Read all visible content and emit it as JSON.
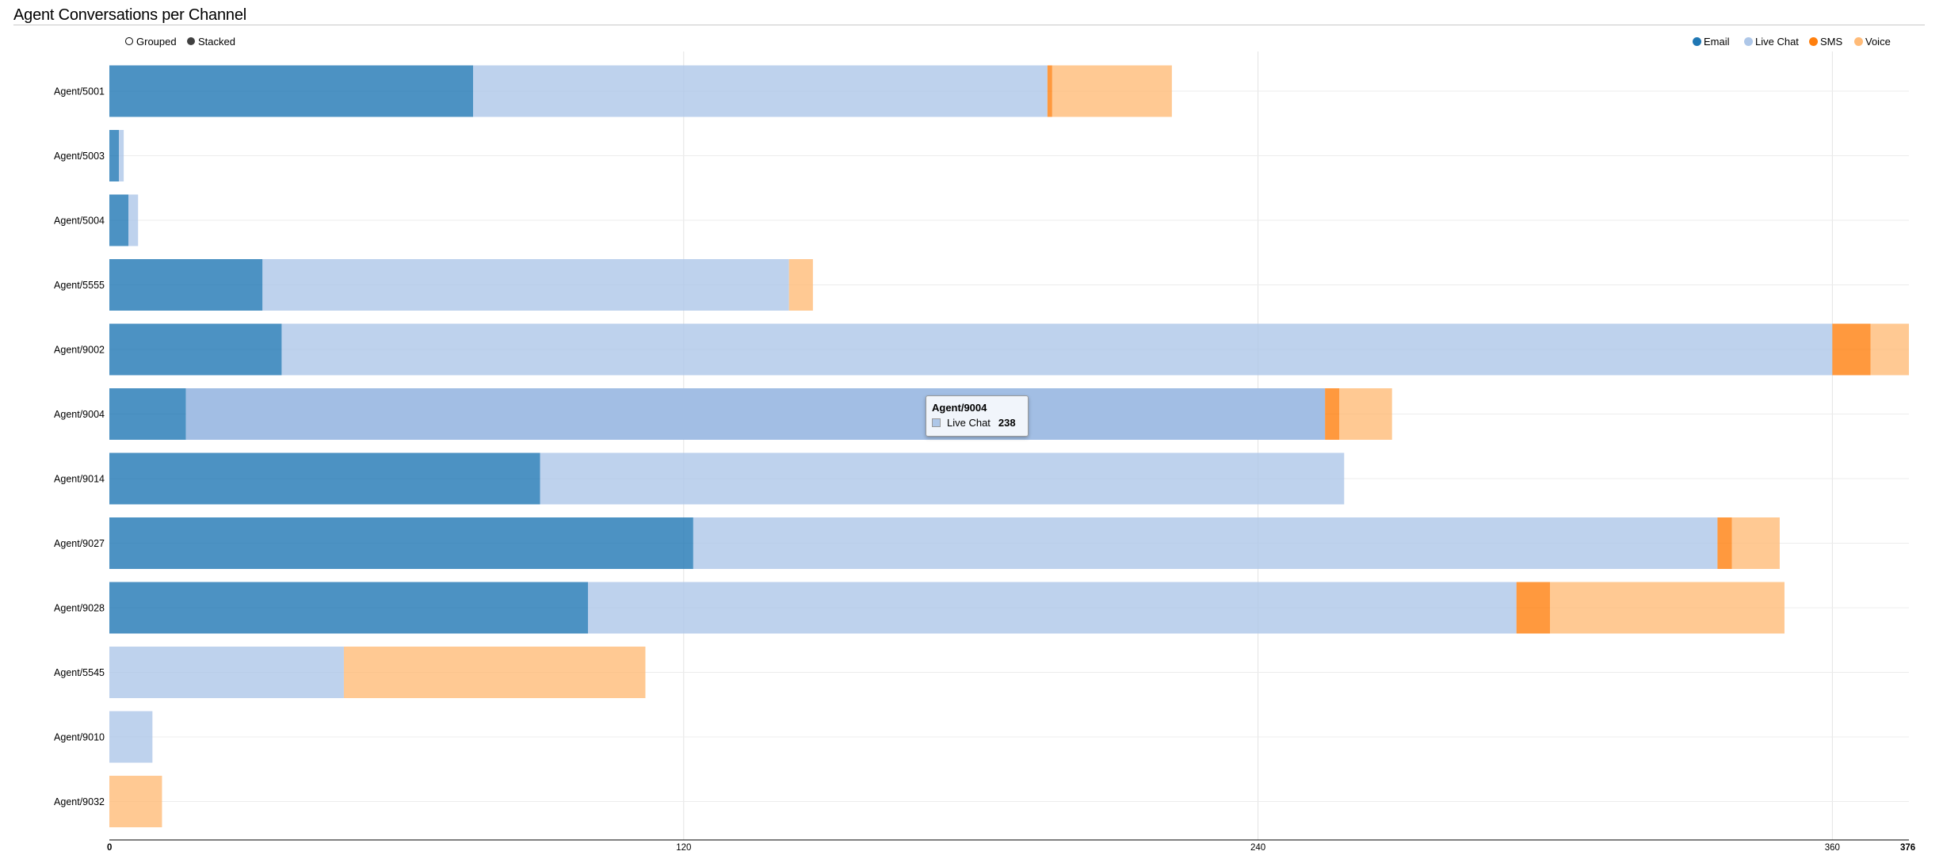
{
  "chart_data": {
    "type": "bar",
    "orientation": "horizontal",
    "stacked": true,
    "title": "Agent Conversations per Channel",
    "categories": [
      "Agent/5001",
      "Agent/5003",
      "Agent/5004",
      "Agent/5555",
      "Agent/9002",
      "Agent/9004",
      "Agent/9014",
      "Agent/9027",
      "Agent/9028",
      "Agent/5545",
      "Agent/9010",
      "Agent/9032"
    ],
    "series": [
      {
        "name": "Email",
        "color": "#1f77b4",
        "values": [
          76,
          2,
          4,
          32,
          36,
          16,
          90,
          122,
          100,
          0,
          0,
          0
        ]
      },
      {
        "name": "Live Chat",
        "color": "#aec7e8",
        "values": [
          120,
          1,
          2,
          110,
          324,
          238,
          168,
          214,
          194,
          49,
          9,
          0
        ]
      },
      {
        "name": "SMS",
        "color": "#ff7f0e",
        "values": [
          1,
          0,
          0,
          0,
          8,
          3,
          0,
          3,
          7,
          0,
          0,
          0
        ]
      },
      {
        "name": "Voice",
        "color": "#ffbb78",
        "values": [
          25,
          0,
          0,
          5,
          8,
          11,
          0,
          10,
          49,
          63,
          0,
          11
        ]
      }
    ],
    "xlim": [
      0,
      376
    ],
    "xticks": [
      0,
      120,
      240,
      360,
      376
    ],
    "xlabel": "",
    "ylabel": "",
    "grid": true,
    "legend_position": "top-right",
    "highlighted": {
      "category": "Agent/9004",
      "series": "Live Chat"
    }
  },
  "controls": {
    "grouped_label": "Grouped",
    "stacked_label": "Stacked",
    "selected": "Stacked"
  },
  "tooltip": {
    "title": "Agent/9004",
    "series": "Live Chat",
    "value": "238",
    "swatch_color": "#aec7e8"
  }
}
